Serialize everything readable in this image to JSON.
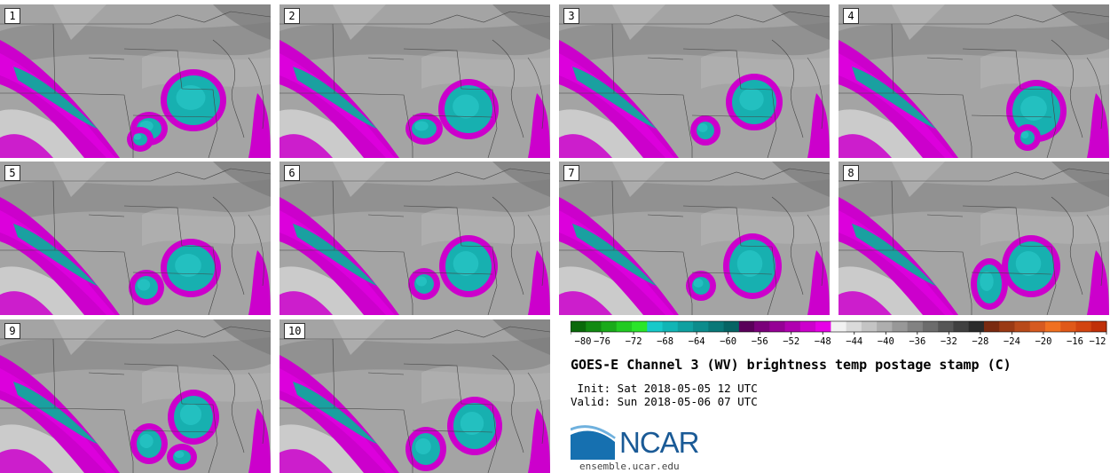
{
  "panels": [
    {
      "label": "1"
    },
    {
      "label": "2"
    },
    {
      "label": "3"
    },
    {
      "label": "4"
    },
    {
      "label": "5"
    },
    {
      "label": "6"
    },
    {
      "label": "7"
    },
    {
      "label": "8"
    },
    {
      "label": "9"
    },
    {
      "label": "10"
    }
  ],
  "colorbar": {
    "colors": [
      "#0a6a0a",
      "#128a12",
      "#1aaa1a",
      "#22ca22",
      "#2ae52a",
      "#17c9c9",
      "#11b5b5",
      "#0fa0a0",
      "#0c8c8c",
      "#097878",
      "#066464",
      "#5a005a",
      "#7a007a",
      "#950095",
      "#b000b0",
      "#cc00cc",
      "#e600e6",
      "#f2f2f2",
      "#dadada",
      "#c4c4c4",
      "#aeaeae",
      "#989898",
      "#828282",
      "#6c6c6c",
      "#565656",
      "#404040",
      "#2a2a2a",
      "#7a2a10",
      "#9a3a14",
      "#b84a1a",
      "#d65a20",
      "#f07020",
      "#e05818",
      "#d24410",
      "#c03008"
    ],
    "ticks": [
      "−80",
      "−76",
      "−72",
      "−68",
      "−64",
      "−60",
      "−56",
      "−52",
      "−48",
      "−44",
      "−40",
      "−36",
      "−32",
      "−28",
      "−24",
      "−20",
      "−16",
      "−12"
    ]
  },
  "title": "GOES-E Channel 3 (WV) brightness temp postage stamp (C)",
  "init": " Init: Sat 2018-05-05 12 UTC",
  "valid": "Valid: Sun 2018-05-06 07 UTC",
  "logo_text": "NCAR",
  "url": "ensemble.ucar.edu"
}
